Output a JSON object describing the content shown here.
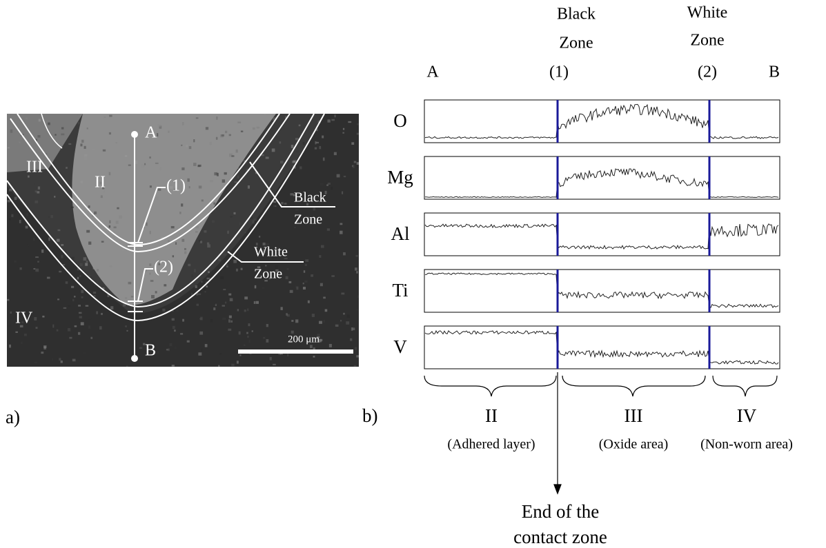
{
  "panel_a": {
    "label": "a)",
    "point_start": "A",
    "point_end": "B",
    "marker_1": "(1)",
    "marker_2": "(2)",
    "regions": [
      "II",
      "III",
      "IV"
    ],
    "zones": [
      {
        "lines": [
          "Black",
          "Zone"
        ]
      },
      {
        "lines": [
          "White",
          "Zone"
        ]
      }
    ],
    "scale_bar": "200 μm"
  },
  "panel_b": {
    "label": "b)",
    "end_start": "A",
    "end_end": "B",
    "zones": [
      {
        "lines": [
          "Black",
          "Zone"
        ],
        "marker": "(1)"
      },
      {
        "lines": [
          "White",
          "Zone"
        ],
        "marker": "(2)"
      }
    ],
    "elements": [
      "O",
      "Mg",
      "Al",
      "Ti",
      "V"
    ],
    "regions": [
      {
        "name": "II",
        "description": "(Adhered layer)"
      },
      {
        "name": "III",
        "description": "(Oxide area)"
      },
      {
        "name": "IV",
        "description": "(Non-worn area)"
      }
    ],
    "annotation": [
      "End of the",
      "contact zone"
    ]
  }
}
